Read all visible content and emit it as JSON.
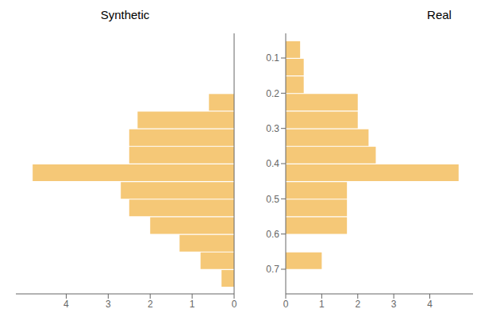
{
  "chart_data": [
    {
      "type": "histogram",
      "orientation": "horizontal",
      "title": "Synthetic",
      "bins": [
        0.05,
        0.1,
        0.15,
        0.2,
        0.25,
        0.3,
        0.35,
        0.4,
        0.45,
        0.5,
        0.55,
        0.6,
        0.65,
        0.7,
        0.75
      ],
      "values": [
        0.0,
        0.0,
        0.0,
        0.6,
        2.3,
        2.5,
        2.5,
        4.8,
        2.7,
        2.5,
        2.0,
        1.3,
        0.8,
        0.3
      ],
      "color": "#F5C877",
      "xlim": [
        5.2,
        0
      ],
      "xticks": [
        4,
        3,
        2,
        1,
        0
      ],
      "ylim": [
        0.03,
        0.77
      ],
      "yticks": [
        0.1,
        0.2,
        0.3,
        0.4,
        0.5,
        0.6,
        0.7
      ],
      "tick_labels": "x"
    },
    {
      "type": "histogram",
      "orientation": "horizontal",
      "title": "Real",
      "bins": [
        0.05,
        0.1,
        0.15,
        0.2,
        0.25,
        0.3,
        0.35,
        0.4,
        0.45,
        0.5,
        0.55,
        0.6,
        0.65,
        0.7,
        0.75
      ],
      "values": [
        0.4,
        0.5,
        0.5,
        2.0,
        2.0,
        2.3,
        2.5,
        4.8,
        1.7,
        1.7,
        1.7,
        0.0,
        1.0,
        0.0
      ],
      "color": "#F5C877",
      "xlim": [
        0,
        5.2
      ],
      "xticks": [
        0,
        1,
        2,
        3,
        4
      ],
      "ylim": [
        0.03,
        0.77
      ],
      "yticks": [
        0.1,
        0.2,
        0.3,
        0.4,
        0.5,
        0.6,
        0.7
      ]
    }
  ]
}
